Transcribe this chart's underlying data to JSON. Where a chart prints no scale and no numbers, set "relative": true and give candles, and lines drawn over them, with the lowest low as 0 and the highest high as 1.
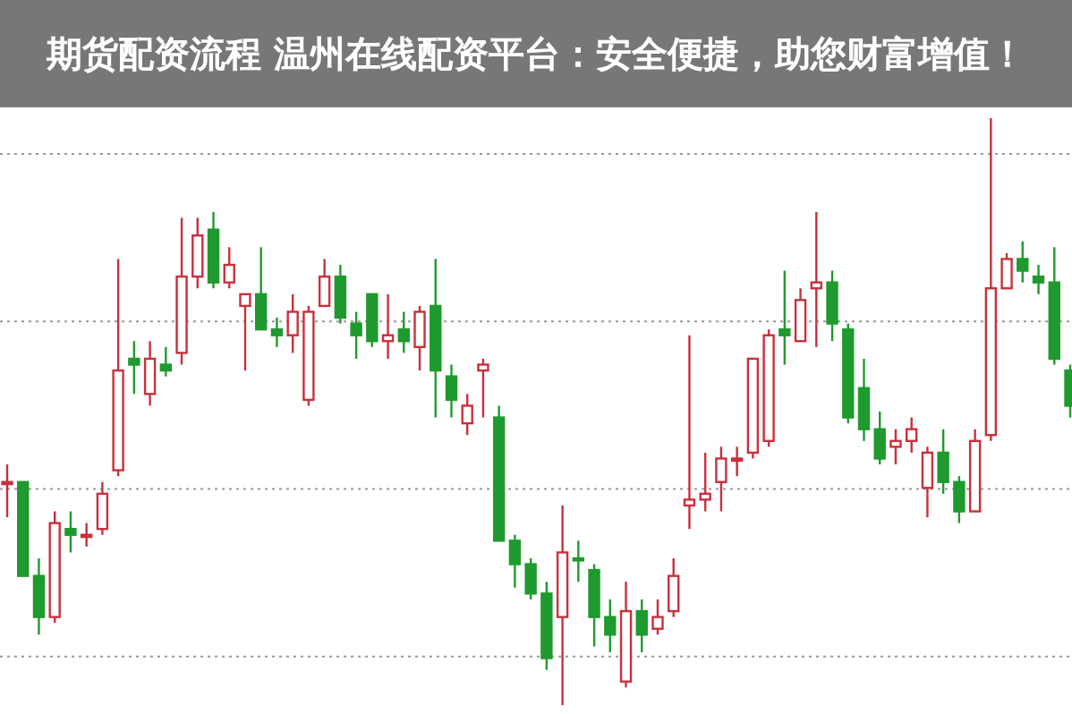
{
  "chart_data": {
    "type": "candlestick",
    "relative": true,
    "title": "期货配资流程 温州在线配资平台：安全便捷，助您财富增值！",
    "grid": "y",
    "colors": [
      "#c8303c",
      "#1f9a2e",
      "#1f9a2e",
      "#c8303c",
      "#1f9a2e",
      "#c8303c",
      "#c8303c",
      "#c8303c",
      "#1f9a2e",
      "#c8303c",
      "#1f9a2e",
      "#c8303c",
      "#c8303c",
      "#1f9a2e",
      "#c8303c",
      "#c8303c",
      "#1f9a2e",
      "#1f9a2e",
      "#c8303c",
      "#c8303c",
      "#c8303c",
      "#1f9a2e",
      "#1f9a2e",
      "#1f9a2e",
      "#c8303c",
      "#1f9a2e",
      "#c8303c",
      "#1f9a2e",
      "#1f9a2e",
      "#c8303c",
      "#c8303c",
      "#1f9a2e",
      "#1f9a2e",
      "#1f9a2e",
      "#1f9a2e",
      "#c8303c",
      "#1f9a2e",
      "#1f9a2e",
      "#1f9a2e",
      "#c8303c",
      "#1f9a2e",
      "#c8303c",
      "#c8303c",
      "#c8303c",
      "#c8303c",
      "#c8303c",
      "#c8303c",
      "#c8303c",
      "#c8303c",
      "#1f9a2e",
      "#c8303c",
      "#c8303c",
      "#1f9a2e",
      "#1f9a2e",
      "#1f9a2e",
      "#1f9a2e",
      "#c8303c",
      "#c8303c",
      "#c8303c",
      "#1f9a2e",
      "#1f9a2e",
      "#c8303c",
      "#c8303c",
      "#c8303c",
      "#1f9a2e",
      "#1f9a2e",
      "#1f9a2e",
      "#1f9a2e"
    ],
    "categories": [
      null,
      null,
      null,
      null,
      null,
      null,
      null,
      null,
      null,
      null,
      null,
      null,
      null,
      null,
      null,
      null,
      null,
      null,
      null,
      null,
      null,
      null,
      null,
      null,
      null,
      null,
      null,
      null,
      null,
      null,
      null,
      null,
      null,
      null,
      null,
      null,
      null,
      null,
      null,
      null,
      null,
      null,
      null,
      null,
      null,
      null,
      null,
      null,
      null,
      null,
      null,
      null,
      null,
      null,
      null,
      null,
      null,
      null,
      null,
      null,
      null,
      null,
      null,
      null,
      null,
      null,
      null,
      null
    ],
    "ohlc": [
      [
        0.38,
        0.41,
        0.32,
        0.38
      ],
      [
        0.38,
        0.38,
        0.22,
        0.22
      ],
      [
        0.22,
        0.25,
        0.12,
        0.15
      ],
      [
        0.15,
        0.33,
        0.14,
        0.31
      ],
      [
        0.3,
        0.33,
        0.26,
        0.29
      ],
      [
        0.29,
        0.31,
        0.27,
        0.29
      ],
      [
        0.3,
        0.38,
        0.29,
        0.36
      ],
      [
        0.4,
        0.76,
        0.39,
        0.57
      ],
      [
        0.59,
        0.62,
        0.53,
        0.58
      ],
      [
        0.53,
        0.62,
        0.51,
        0.59
      ],
      [
        0.58,
        0.61,
        0.56,
        0.57
      ],
      [
        0.6,
        0.83,
        0.58,
        0.73
      ],
      [
        0.73,
        0.83,
        0.71,
        0.8
      ],
      [
        0.81,
        0.84,
        0.71,
        0.72
      ],
      [
        0.72,
        0.78,
        0.71,
        0.75
      ],
      [
        0.68,
        0.7,
        0.57,
        0.7
      ],
      [
        0.7,
        0.78,
        0.64,
        0.64
      ],
      [
        0.64,
        0.66,
        0.61,
        0.63
      ],
      [
        0.63,
        0.7,
        0.6,
        0.67
      ],
      [
        0.52,
        0.68,
        0.51,
        0.67
      ],
      [
        0.68,
        0.76,
        0.68,
        0.73
      ],
      [
        0.73,
        0.75,
        0.65,
        0.66
      ],
      [
        0.65,
        0.67,
        0.59,
        0.63
      ],
      [
        0.7,
        0.7,
        0.61,
        0.62
      ],
      [
        0.62,
        0.7,
        0.59,
        0.63
      ],
      [
        0.64,
        0.67,
        0.6,
        0.62
      ],
      [
        0.61,
        0.68,
        0.57,
        0.67
      ],
      [
        0.68,
        0.76,
        0.49,
        0.57
      ],
      [
        0.56,
        0.58,
        0.49,
        0.52
      ],
      [
        0.48,
        0.53,
        0.46,
        0.51
      ],
      [
        0.57,
        0.59,
        0.49,
        0.58
      ],
      [
        0.49,
        0.51,
        0.28,
        0.28
      ],
      [
        0.28,
        0.29,
        0.2,
        0.24
      ],
      [
        0.24,
        0.25,
        0.18,
        0.19
      ],
      [
        0.19,
        0.21,
        0.06,
        0.08
      ],
      [
        0.15,
        0.34,
        0.0,
        0.26
      ],
      [
        0.25,
        0.28,
        0.21,
        0.25
      ],
      [
        0.23,
        0.24,
        0.1,
        0.15
      ],
      [
        0.15,
        0.18,
        0.09,
        0.12
      ],
      [
        0.04,
        0.21,
        0.03,
        0.16
      ],
      [
        0.16,
        0.18,
        0.09,
        0.12
      ],
      [
        0.13,
        0.18,
        0.12,
        0.15
      ],
      [
        0.16,
        0.25,
        0.15,
        0.22
      ],
      [
        0.34,
        0.63,
        0.3,
        0.35
      ],
      [
        0.35,
        0.43,
        0.33,
        0.36
      ],
      [
        0.38,
        0.44,
        0.33,
        0.42
      ],
      [
        0.42,
        0.44,
        0.39,
        0.42
      ],
      [
        0.43,
        0.59,
        0.42,
        0.59
      ],
      [
        0.45,
        0.64,
        0.44,
        0.63
      ],
      [
        0.64,
        0.74,
        0.58,
        0.63
      ],
      [
        0.62,
        0.71,
        0.62,
        0.69
      ],
      [
        0.71,
        0.84,
        0.61,
        0.72
      ],
      [
        0.72,
        0.74,
        0.62,
        0.65
      ],
      [
        0.64,
        0.65,
        0.48,
        0.49
      ],
      [
        0.54,
        0.59,
        0.45,
        0.47
      ],
      [
        0.47,
        0.5,
        0.41,
        0.42
      ],
      [
        0.44,
        0.47,
        0.41,
        0.45
      ],
      [
        0.45,
        0.49,
        0.43,
        0.47
      ],
      [
        0.37,
        0.44,
        0.32,
        0.43
      ],
      [
        0.43,
        0.47,
        0.36,
        0.38
      ],
      [
        0.38,
        0.39,
        0.31,
        0.33
      ],
      [
        0.33,
        0.47,
        0.33,
        0.45
      ],
      [
        0.46,
        1.0,
        0.45,
        0.71
      ],
      [
        0.71,
        0.77,
        0.71,
        0.76
      ],
      [
        0.76,
        0.79,
        0.72,
        0.74
      ],
      [
        0.73,
        0.75,
        0.7,
        0.72
      ],
      [
        0.72,
        0.78,
        0.58,
        0.59
      ],
      [
        0.57,
        0.58,
        0.49,
        0.51
      ]
    ]
  }
}
